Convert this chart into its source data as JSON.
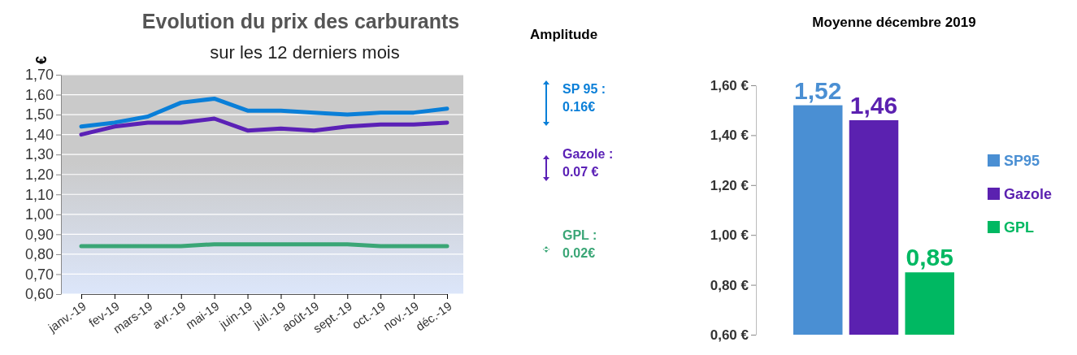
{
  "chart_data": [
    {
      "type": "line",
      "title": "Evolution du prix des carburants",
      "subtitle": "sur les 12 derniers mois",
      "ylabel": "€",
      "categories": [
        "janv.-19",
        "fev-19",
        "mars-19",
        "avr.-19",
        "mai-19",
        "juin-19",
        "juil.-19",
        "août-19",
        "sept.-19",
        "oct.-19",
        "nov.-19",
        "déc.-19"
      ],
      "series": [
        {
          "color": "#0a7fd8",
          "values": [
            1.44,
            1.46,
            1.49,
            1.56,
            1.58,
            1.52,
            1.52,
            1.51,
            1.5,
            1.51,
            1.51,
            1.53
          ]
        },
        {
          "color": "#5b21b6",
          "values": [
            1.4,
            1.44,
            1.46,
            1.46,
            1.48,
            1.42,
            1.43,
            1.42,
            1.44,
            1.45,
            1.45,
            1.46
          ]
        },
        {
          "color": "#3aa676",
          "values": [
            0.84,
            0.84,
            0.84,
            0.84,
            0.85,
            0.85,
            0.85,
            0.85,
            0.85,
            0.84,
            0.84,
            0.84
          ]
        }
      ],
      "ylim": [
        0.6,
        1.7
      ],
      "yticks": [
        {
          "value": 0.6,
          "label": "0,60"
        },
        {
          "value": 0.7,
          "label": "0,70"
        },
        {
          "value": 0.8,
          "label": "0,80"
        },
        {
          "value": 0.9,
          "label": "0,90"
        },
        {
          "value": 1.0,
          "label": "1,00"
        },
        {
          "value": 1.1,
          "label": "1,10"
        },
        {
          "value": 1.2,
          "label": "1,20"
        },
        {
          "value": 1.3,
          "label": "1,30"
        },
        {
          "value": 1.4,
          "label": "1,40"
        },
        {
          "value": 1.5,
          "label": "1,50"
        },
        {
          "value": 1.6,
          "label": "1,60"
        },
        {
          "value": 1.7,
          "label": "1,70"
        }
      ],
      "grid": "y",
      "annotations": [
        "Amplitude",
        "SP 95 :\n0.16€",
        "Gazole :\n0.07 €",
        "GPL :\n0.02€"
      ]
    },
    {
      "type": "bar",
      "title": "Moyenne décembre 2019",
      "categories": [
        null
      ],
      "series": [
        {
          "name": "SP95",
          "color": "#4a8fd3",
          "values": [
            1.52
          ],
          "value_labels": [
            "1,52"
          ]
        },
        {
          "name": "Gazole",
          "color": "#5b21b0",
          "values": [
            1.46
          ],
          "value_labels": [
            "1,46"
          ]
        },
        {
          "name": "GPL",
          "color": "#00b862",
          "values": [
            0.85
          ],
          "value_labels": [
            "0,85"
          ]
        }
      ],
      "ylim": [
        0.6,
        1.6
      ],
      "yticks": [
        {
          "value": 0.6,
          "label": "0,60 €"
        },
        {
          "value": 0.8,
          "label": "0,80 €"
        },
        {
          "value": 1.0,
          "label": "1,00 €"
        },
        {
          "value": 1.2,
          "label": "1,20 €"
        },
        {
          "value": 1.4,
          "label": "1,40 €"
        },
        {
          "value": 1.6,
          "label": "1,60 €"
        }
      ],
      "legend": "right"
    }
  ]
}
